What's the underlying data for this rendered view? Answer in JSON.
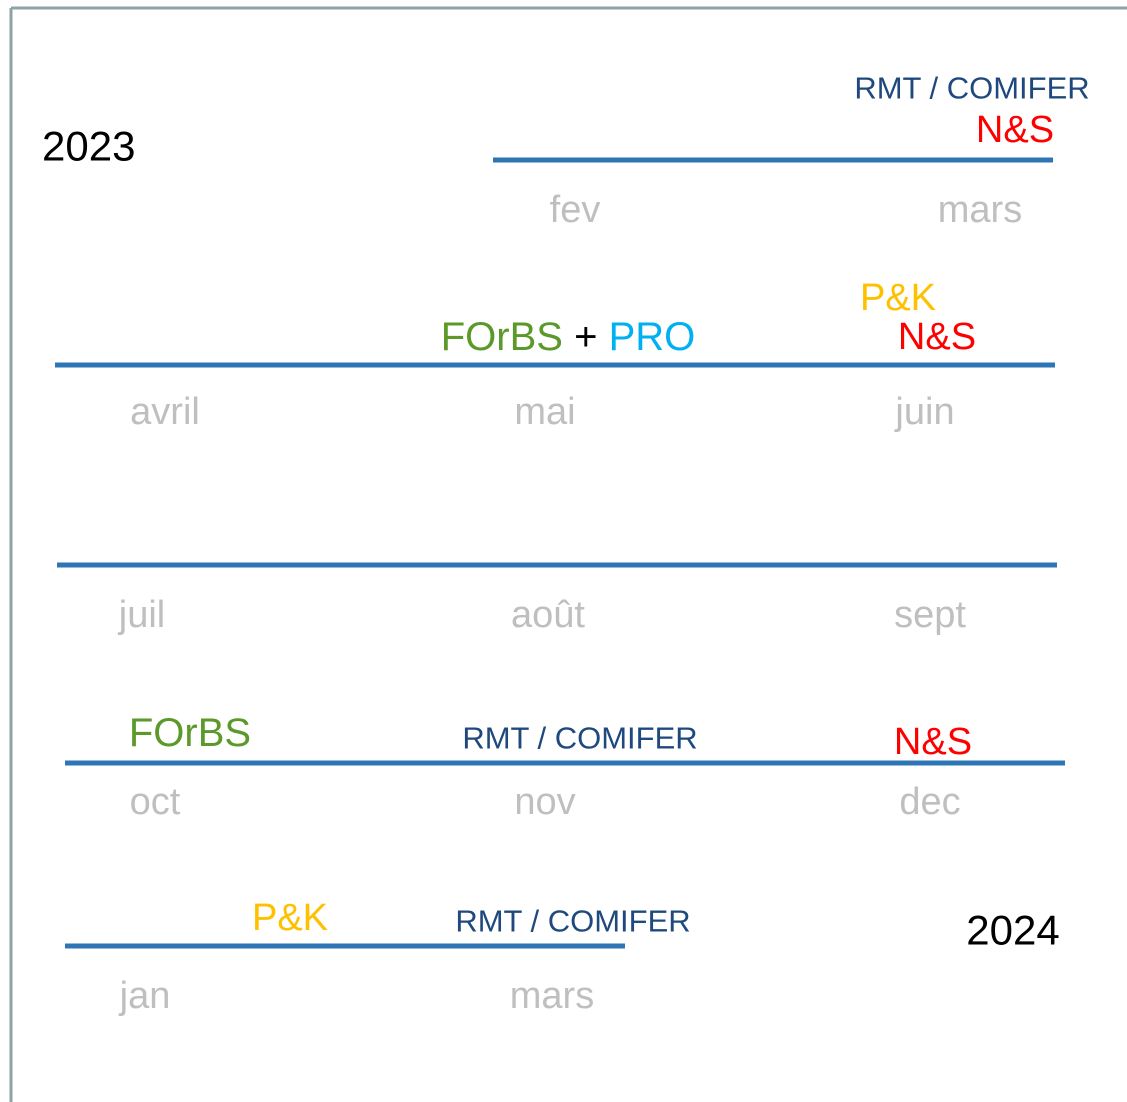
{
  "timeline": {
    "year_start": "2023",
    "year_end": "2024",
    "rows": [
      {
        "months": [
          "fev",
          "mars"
        ],
        "labels": [
          "RMT / COMIFER",
          "N&S"
        ]
      },
      {
        "months": [
          "avril",
          "mai",
          "juin"
        ],
        "labels": [
          "FOrBS",
          "+",
          "PRO",
          "P&K",
          "N&S"
        ]
      },
      {
        "months": [
          "juil",
          "août",
          "sept"
        ],
        "labels": []
      },
      {
        "months": [
          "oct",
          "nov",
          "dec"
        ],
        "labels": [
          "FOrBS",
          "RMT / COMIFER",
          "N&S"
        ]
      },
      {
        "months": [
          "jan",
          "mars"
        ],
        "labels": [
          "P&K",
          "RMT / COMIFER"
        ]
      }
    ]
  }
}
